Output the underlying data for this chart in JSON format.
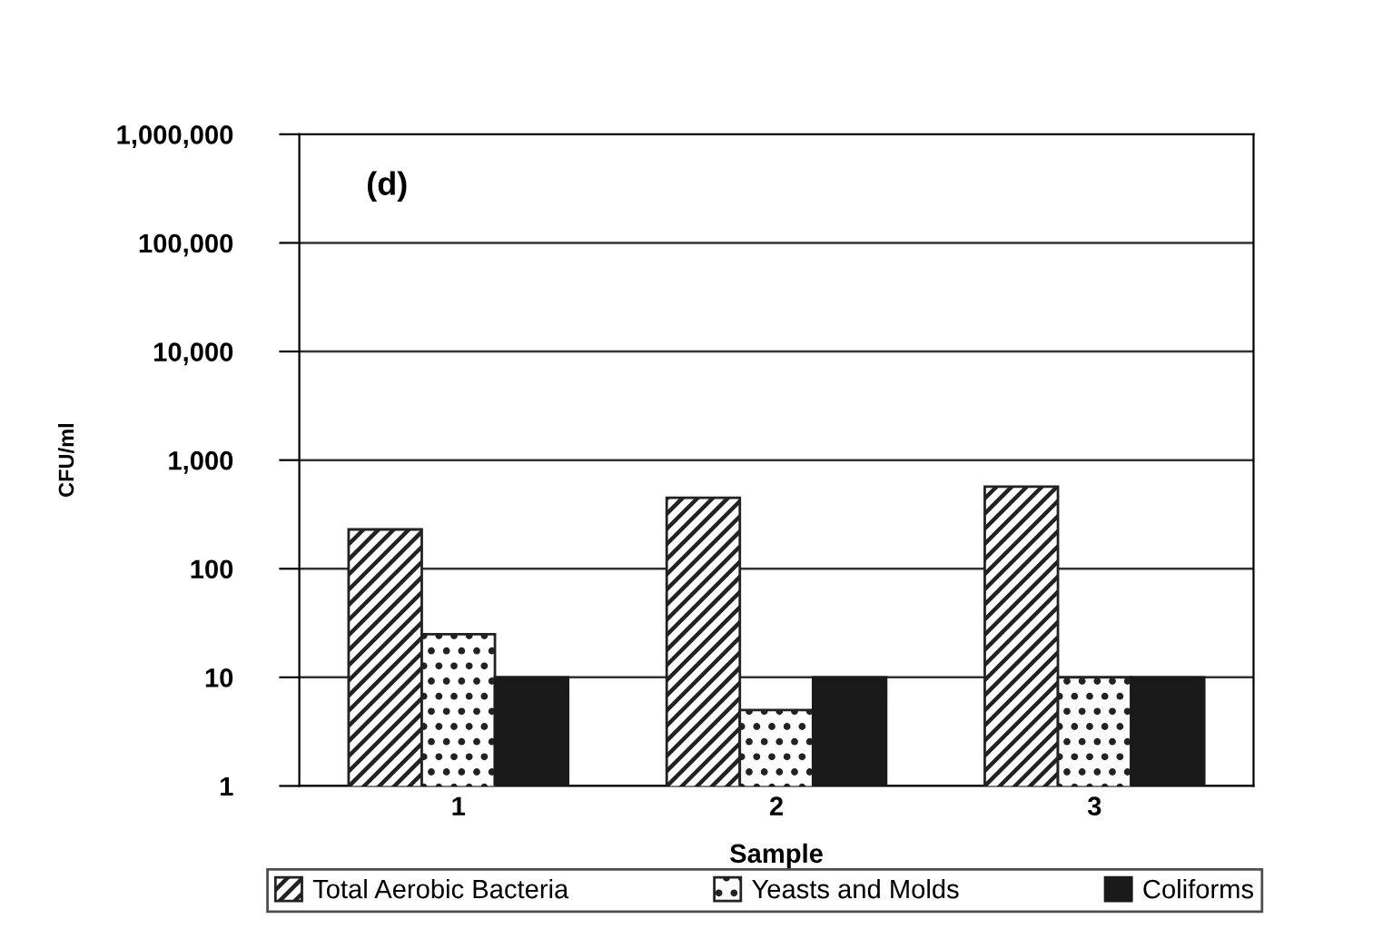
{
  "chart_data": {
    "type": "bar",
    "categories": [
      "1",
      "2",
      "3"
    ],
    "series": [
      {
        "name": "Total Aerobic Bacteria",
        "color": "#222222",
        "values": [
          230,
          450,
          570
        ]
      },
      {
        "name": "Yeasts and Molds",
        "color": "#222222",
        "values": [
          25,
          5,
          10
        ]
      },
      {
        "name": "Coliforms",
        "color": "#1a1a1a",
        "values": [
          10,
          10,
          10
        ]
      }
    ],
    "xlabel": "Sample",
    "ylabel": "CFU/ml",
    "annotations": [
      "(d)"
    ],
    "log": "y",
    "ylim": [
      1,
      1000000
    ],
    "yticks": [
      1,
      10,
      100,
      {
        "value": 1000,
        "label": "1,000"
      },
      {
        "value": 10000,
        "label": "10,000"
      },
      {
        "value": 100000,
        "label": "100,000"
      },
      {
        "value": 1000000,
        "label": "1,000,000"
      }
    ],
    "grid": "y",
    "legend": "bottom"
  }
}
